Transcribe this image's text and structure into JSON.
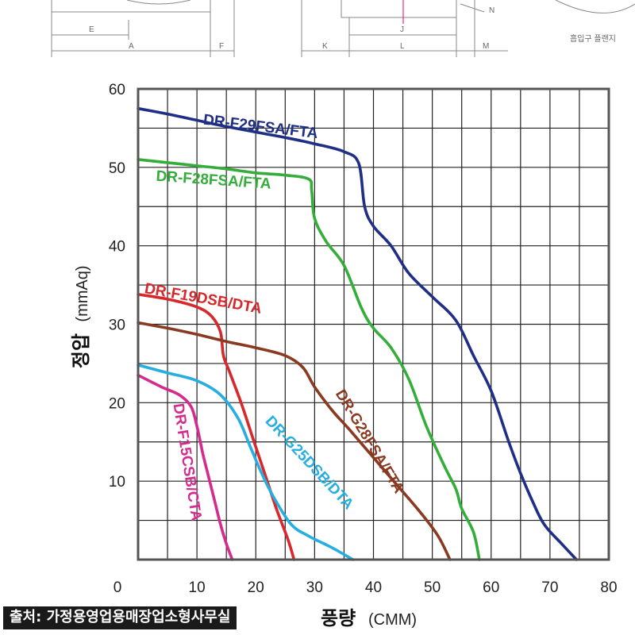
{
  "drawing": {
    "labels": [
      "E",
      "A",
      "F",
      "K",
      "L",
      "J",
      "M",
      "N"
    ],
    "caption": "흡입구 플랜지"
  },
  "source": "출처: 가정용영업용매장업소형사무실",
  "chart_data": {
    "type": "line",
    "xlabel": "풍량",
    "xunit": "(CMM)",
    "ylabel": "정압",
    "yunit": "(mmAq)",
    "xlim": [
      0,
      80
    ],
    "ylim": [
      0,
      60
    ],
    "xticks": [
      0,
      10,
      20,
      30,
      40,
      50,
      60,
      70,
      80
    ],
    "yticks": [
      10,
      20,
      30,
      40,
      50,
      60
    ],
    "grid": true,
    "series": [
      {
        "name": "DR-F29FSA/FTA",
        "color": "#1f2f86",
        "points": [
          [
            0,
            57.5
          ],
          [
            5,
            56.8
          ],
          [
            10,
            56
          ],
          [
            15,
            55.2
          ],
          [
            20,
            54.5
          ],
          [
            25,
            53.8
          ],
          [
            30,
            53
          ],
          [
            35,
            52
          ],
          [
            37.5,
            50.5
          ],
          [
            38.5,
            45
          ],
          [
            40,
            42.5
          ],
          [
            43,
            40
          ],
          [
            46,
            36.5
          ],
          [
            50,
            33.5
          ],
          [
            54,
            30.5
          ],
          [
            57,
            26
          ],
          [
            60,
            21.5
          ],
          [
            63,
            15
          ],
          [
            65,
            11
          ],
          [
            67,
            7.5
          ],
          [
            69,
            4.5
          ],
          [
            72,
            2
          ],
          [
            74.5,
            0
          ]
        ]
      },
      {
        "name": "DR-F28FSA/FTA",
        "color": "#35ad3b",
        "points": [
          [
            0,
            51
          ],
          [
            5,
            50.6
          ],
          [
            10,
            50.2
          ],
          [
            15,
            49.8
          ],
          [
            20,
            49.3
          ],
          [
            25,
            49
          ],
          [
            29,
            48.5
          ],
          [
            29.5,
            47
          ],
          [
            30,
            43.5
          ],
          [
            32,
            40.5
          ],
          [
            35,
            37.5
          ],
          [
            38,
            32
          ],
          [
            40,
            29.5
          ],
          [
            43,
            27
          ],
          [
            46,
            23
          ],
          [
            49,
            17
          ],
          [
            52,
            12
          ],
          [
            54,
            9
          ],
          [
            55,
            6.5
          ],
          [
            57,
            3.5
          ],
          [
            58,
            0
          ]
        ]
      },
      {
        "name": "DR-F19DSB/DTA",
        "color": "#d7282b",
        "points": [
          [
            0,
            33.8
          ],
          [
            5,
            33.2
          ],
          [
            10,
            32.2
          ],
          [
            12.5,
            31
          ],
          [
            14,
            29
          ],
          [
            14.5,
            26
          ],
          [
            15.5,
            24
          ],
          [
            17.5,
            20
          ],
          [
            19.5,
            15.5
          ],
          [
            21.5,
            11
          ],
          [
            23.5,
            6.5
          ],
          [
            25.5,
            2.5
          ],
          [
            26.5,
            0
          ]
        ]
      },
      {
        "name": "DR-G28FSA/FTA",
        "color": "#8b3a22",
        "points": [
          [
            0,
            30.2
          ],
          [
            5,
            29.5
          ],
          [
            10,
            28.7
          ],
          [
            15,
            27.8
          ],
          [
            20,
            27
          ],
          [
            25,
            26
          ],
          [
            28,
            24.5
          ],
          [
            30,
            22
          ],
          [
            33,
            19
          ],
          [
            36,
            16.5
          ],
          [
            40,
            13
          ],
          [
            44,
            9.5
          ],
          [
            48,
            6
          ],
          [
            51,
            3
          ],
          [
            53,
            0
          ]
        ]
      },
      {
        "name": "DR-G25DSB/DTA",
        "color": "#26aee0",
        "points": [
          [
            0,
            24.8
          ],
          [
            5,
            23.8
          ],
          [
            10,
            22.8
          ],
          [
            14,
            21
          ],
          [
            17,
            18
          ],
          [
            19,
            14.5
          ],
          [
            21,
            11
          ],
          [
            23,
            8
          ],
          [
            26,
            4.5
          ],
          [
            29,
            3
          ],
          [
            33,
            1.5
          ],
          [
            36.5,
            0
          ]
        ]
      },
      {
        "name": "DR-F15CSB/CTA",
        "color": "#d52b8f",
        "points": [
          [
            0,
            23.5
          ],
          [
            4,
            22
          ],
          [
            7,
            21
          ],
          [
            9,
            19.5
          ],
          [
            10,
            17
          ],
          [
            11,
            13.5
          ],
          [
            12,
            10.5
          ],
          [
            13,
            7.5
          ],
          [
            14,
            4.5
          ],
          [
            15,
            2
          ],
          [
            16,
            0
          ]
        ]
      }
    ]
  }
}
